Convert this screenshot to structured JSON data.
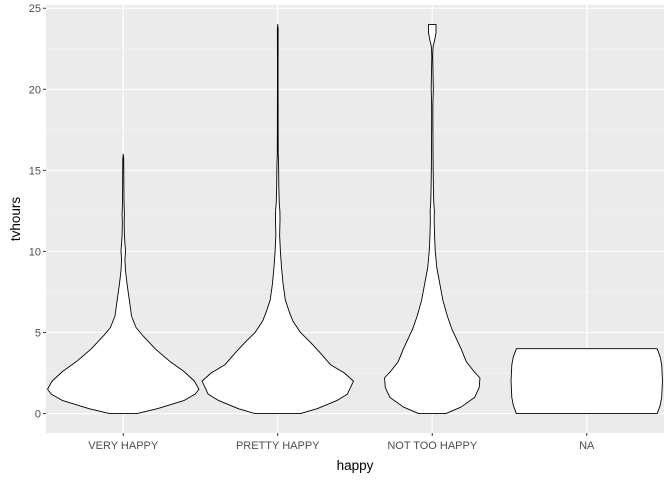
{
  "chart_data": {
    "type": "violin",
    "xlabel": "happy",
    "ylabel": "tvhours",
    "ylim": [
      -1.2,
      25.2
    ],
    "yticks": [
      0,
      5,
      10,
      15,
      20,
      25
    ],
    "grid": true,
    "categories": [
      "VERY HAPPY",
      "PRETTY HAPPY",
      "NOT TOO HAPPY",
      "NA"
    ],
    "colors": {
      "panel": "#ebebeb",
      "grid_major": "#ffffff",
      "grid_minor": "#f5f5f5",
      "violin_fill": "#ffffff",
      "violin_stroke": "#000000",
      "tick": "#333333"
    },
    "violins": [
      {
        "category": "VERY HAPPY",
        "max_halfwidth_fraction": 0.5,
        "profile": [
          [
            0,
            0.18
          ],
          [
            0.3,
            0.45
          ],
          [
            0.8,
            0.8
          ],
          [
            1.2,
            0.95
          ],
          [
            1.5,
            1.0
          ],
          [
            2,
            0.94
          ],
          [
            2.6,
            0.8
          ],
          [
            3.2,
            0.62
          ],
          [
            4,
            0.42
          ],
          [
            4.8,
            0.26
          ],
          [
            5.3,
            0.17
          ],
          [
            6,
            0.11
          ],
          [
            7,
            0.08
          ],
          [
            8,
            0.05
          ],
          [
            8.8,
            0.03
          ],
          [
            9.5,
            0.022
          ],
          [
            10,
            0.03
          ],
          [
            10.5,
            0.022
          ],
          [
            11,
            0.015
          ],
          [
            11.8,
            0.012
          ],
          [
            12.3,
            0.015
          ],
          [
            13,
            0.01
          ],
          [
            14,
            0.008
          ],
          [
            15,
            0.007
          ],
          [
            15.7,
            0.006
          ],
          [
            16,
            0
          ]
        ]
      },
      {
        "category": "PRETTY HAPPY",
        "max_halfwidth_fraction": 0.5,
        "profile": [
          [
            0,
            0.3
          ],
          [
            0.3,
            0.52
          ],
          [
            0.8,
            0.78
          ],
          [
            1.2,
            0.92
          ],
          [
            2,
            1.0
          ],
          [
            2.5,
            0.88
          ],
          [
            3,
            0.7
          ],
          [
            3.8,
            0.55
          ],
          [
            4.4,
            0.43
          ],
          [
            5,
            0.3
          ],
          [
            5.7,
            0.2
          ],
          [
            6.3,
            0.15
          ],
          [
            7,
            0.1
          ],
          [
            8,
            0.07
          ],
          [
            9,
            0.05
          ],
          [
            10,
            0.035
          ],
          [
            11,
            0.025
          ],
          [
            12,
            0.03
          ],
          [
            12.5,
            0.028
          ],
          [
            13,
            0.02
          ],
          [
            14,
            0.014
          ],
          [
            15,
            0.012
          ],
          [
            15.5,
            0.01
          ],
          [
            16,
            0.006
          ],
          [
            18,
            0.005
          ],
          [
            20,
            0.004
          ],
          [
            22,
            0.004
          ],
          [
            23.7,
            0.005
          ],
          [
            24,
            0
          ]
        ]
      },
      {
        "category": "NOT TOO HAPPY",
        "max_halfwidth_fraction": 0.5,
        "profile": [
          [
            0,
            0.18
          ],
          [
            0.4,
            0.38
          ],
          [
            1,
            0.56
          ],
          [
            1.6,
            0.62
          ],
          [
            2.2,
            0.63
          ],
          [
            2.6,
            0.55
          ],
          [
            3.2,
            0.45
          ],
          [
            4,
            0.38
          ],
          [
            4.7,
            0.31
          ],
          [
            5.2,
            0.26
          ],
          [
            6,
            0.2
          ],
          [
            7,
            0.14
          ],
          [
            8,
            0.1
          ],
          [
            9,
            0.06
          ],
          [
            10,
            0.04
          ],
          [
            11,
            0.03
          ],
          [
            12,
            0.025
          ],
          [
            12.5,
            0.028
          ],
          [
            13,
            0.02
          ],
          [
            14,
            0.015
          ],
          [
            15,
            0.012
          ],
          [
            16,
            0.01
          ],
          [
            18,
            0.008
          ],
          [
            19,
            0.008
          ],
          [
            20,
            0.014
          ],
          [
            21,
            0.01
          ],
          [
            22,
            0.006
          ],
          [
            22.6,
            0.01
          ],
          [
            23,
            0.03
          ],
          [
            23.5,
            0.05
          ],
          [
            24,
            0.05
          ]
        ]
      },
      {
        "category": "NA",
        "max_halfwidth_fraction": 0.5,
        "profile": [
          [
            0,
            0.93
          ],
          [
            0.5,
            0.97
          ],
          [
            1,
            0.99
          ],
          [
            2,
            1.0
          ],
          [
            3,
            0.99
          ],
          [
            3.5,
            0.97
          ],
          [
            4,
            0.93
          ]
        ]
      }
    ]
  }
}
